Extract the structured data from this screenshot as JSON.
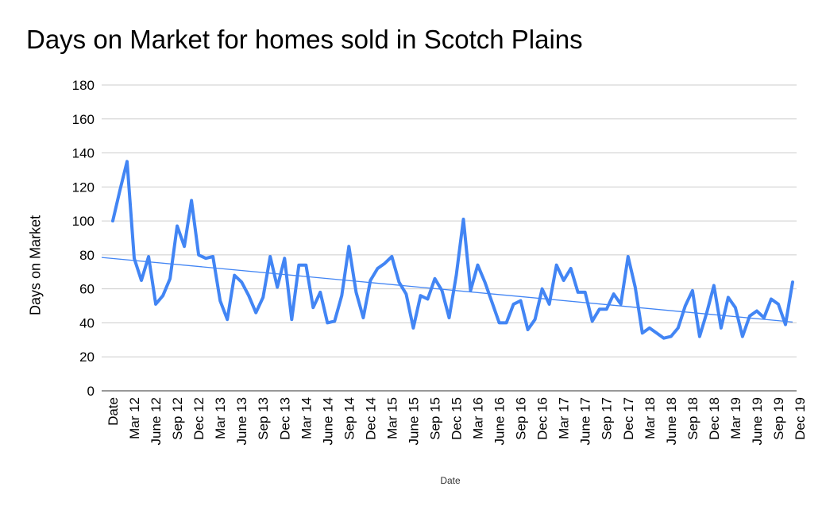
{
  "chart_data": {
    "type": "line",
    "title": "Days on Market for homes sold in Scotch Plains",
    "xlabel": "Date",
    "ylabel": "Days on Market",
    "ylim": [
      0,
      180
    ],
    "yticks": [
      0,
      20,
      40,
      60,
      80,
      100,
      120,
      140,
      160,
      180
    ],
    "grid": true,
    "legend": "none",
    "series_color": "#4285f4",
    "trend_color": "#4285f4",
    "x_tick_labels": [
      "Date",
      "Mar 12",
      "June 12",
      "Sep 12",
      "Dec 12",
      "Mar 13",
      "June 13",
      "Sep 13",
      "Dec 13",
      "Mar 14",
      "June 14",
      "Sep 14",
      "Dec 14",
      "Mar 15",
      "June 15",
      "Sep 15",
      "Dec 15",
      "Mar 16",
      "June 16",
      "Sep 16",
      "Dec 16",
      "Mar 17",
      "June 17",
      "Sep 17",
      "Dec 17",
      "Mar 18",
      "June 18",
      "Sep 18",
      "Dec 18",
      "Mar 19",
      "June 19",
      "Sep 19",
      "Dec 19"
    ],
    "x": [
      "Jan 12",
      "Feb 12",
      "Mar 12",
      "Apr 12",
      "May 12",
      "Jun 12",
      "Jul 12",
      "Aug 12",
      "Sep 12",
      "Oct 12",
      "Nov 12",
      "Dec 12",
      "Jan 13",
      "Feb 13",
      "Mar 13",
      "Apr 13",
      "May 13",
      "Jun 13",
      "Jul 13",
      "Aug 13",
      "Sep 13",
      "Oct 13",
      "Nov 13",
      "Dec 13",
      "Jan 14",
      "Feb 14",
      "Mar 14",
      "Apr 14",
      "May 14",
      "Jun 14",
      "Jul 14",
      "Aug 14",
      "Sep 14",
      "Oct 14",
      "Nov 14",
      "Dec 14",
      "Jan 15",
      "Feb 15",
      "Mar 15",
      "Apr 15",
      "May 15",
      "Jun 15",
      "Jul 15",
      "Aug 15",
      "Sep 15",
      "Oct 15",
      "Nov 15",
      "Dec 15",
      "Jan 16",
      "Feb 16",
      "Mar 16",
      "Apr 16",
      "May 16",
      "Jun 16",
      "Jul 16",
      "Aug 16",
      "Sep 16",
      "Oct 16",
      "Nov 16",
      "Dec 16",
      "Jan 17",
      "Feb 17",
      "Mar 17",
      "Apr 17",
      "May 17",
      "Jun 17",
      "Jul 17",
      "Aug 17",
      "Sep 17",
      "Oct 17",
      "Nov 17",
      "Dec 17",
      "Jan 18",
      "Feb 18",
      "Mar 18",
      "Apr 18",
      "May 18",
      "Jun 18",
      "Jul 18",
      "Aug 18",
      "Sep 18",
      "Oct 18",
      "Nov 18",
      "Dec 18",
      "Jan 19",
      "Feb 19",
      "Mar 19",
      "Apr 19",
      "May 19",
      "Jun 19",
      "Jul 19",
      "Aug 19",
      "Sep 19",
      "Oct 19",
      "Nov 19",
      "Dec 19"
    ],
    "series": [
      {
        "values": [
          100,
          118,
          135,
          78,
          65,
          79,
          51,
          56,
          66,
          97,
          85,
          112,
          80,
          78,
          79,
          53,
          42,
          68,
          64,
          56,
          46,
          55,
          79,
          61,
          78,
          42,
          74,
          74,
          49,
          58,
          40,
          41,
          56,
          85,
          58,
          43,
          65,
          72,
          75,
          79,
          64,
          57,
          37,
          56,
          54,
          66,
          59,
          43,
          68,
          101,
          59,
          74,
          64,
          52,
          40,
          40,
          51,
          53,
          36,
          42,
          60,
          51,
          74,
          65,
          72,
          58,
          58,
          41,
          48,
          48,
          57,
          51,
          79,
          61,
          34,
          37,
          34,
          31,
          32,
          37,
          50,
          59,
          32,
          46,
          62,
          37,
          55,
          49,
          32,
          44,
          47,
          43,
          54,
          51,
          39,
          64
        ]
      }
    ],
    "trendline": {
      "type": "linear",
      "start_value": 78.5,
      "end_value": 40.5
    }
  }
}
